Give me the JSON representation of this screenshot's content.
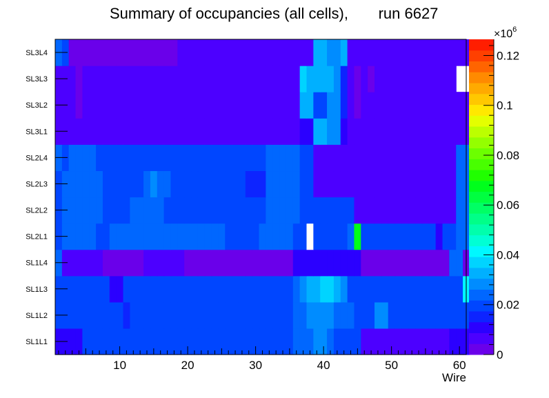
{
  "chart_data": {
    "type": "heatmap",
    "title": "Summary of occupancies (all cells),",
    "run_label": "run 6627",
    "xlabel": "Wire",
    "ylabel": "",
    "xlim": [
      0.5,
      61
    ],
    "x_ticks": [
      10,
      20,
      30,
      40,
      50,
      60
    ],
    "rows": [
      "SL1L1",
      "SL1L2",
      "SL1L3",
      "SL1L4",
      "SL2L1",
      "SL2L2",
      "SL2L3",
      "SL2L4",
      "SL3L1",
      "SL3L2",
      "SL3L3",
      "SL3L4"
    ],
    "colorbar": {
      "multiplier": "×10",
      "exponent": "6",
      "ticks": [
        "0",
        "0.02",
        "0.04",
        "0.06",
        "0.08",
        "0.1",
        "0.12"
      ],
      "tick_values": [
        0,
        0.02,
        0.04,
        0.06,
        0.08,
        0.1,
        0.12
      ],
      "max": 0.1265,
      "palette": [
        "#6a00ea",
        "#4c00ff",
        "#2b00ff",
        "#0d24ff",
        "#0046ff",
        "#0067ff",
        "#008cff",
        "#00b0ff",
        "#00d4ff",
        "#00f8ff",
        "#00ffd4",
        "#00ffac",
        "#00ff88",
        "#00ff64",
        "#00ff40",
        "#00ff1c",
        "#20ff00",
        "#48ff00",
        "#6cff00",
        "#94ff00",
        "#bcff00",
        "#e4ff00",
        "#ffe800",
        "#ffc800",
        "#ffaa00",
        "#ff8a00",
        "#ff6400",
        "#ff4000",
        "#ff1e00"
      ]
    },
    "values": [
      "2222444444444444444444444444444444455566544441111111111111222",
      "4444444444344444444444444444444444455666655544466444444444444",
      "4444444422444444444444444444444444456778876444444444444444449",
      "5111111000000111111000000000000000022222222220000000000000550",
      "4555554455555555555555555444445555544x444445k4444444444424455",
      "4555555444455555444444444444444555554444444411111111111111155",
      "4555555444444565544444444444333555554411111111111111111111155",
      "5455554444444444444444444444444555554411111111111111111111155",
      "1111111111111111111111111111111111112277662111111111111111111",
      "1110111111111111111111111111111111117744663101111111111111111",
      "11101111111111111111111111111111111187777631010111111111111",
      "5400000000000000001111111111111111111177667111111111111111111"
    ]
  }
}
